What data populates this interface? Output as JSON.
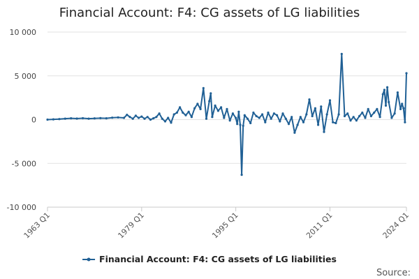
{
  "chart_data": {
    "type": "line",
    "title": "Financial Account: F4: CG assets of LG liabilities",
    "xlabel": "",
    "ylabel": "",
    "x_tick_labels": [
      "1963 Q1",
      "1979 Q1",
      "1995 Q1",
      "2011 Q1",
      "2024 Q1"
    ],
    "y_tick_labels": [
      "10 000",
      "5 000",
      "0",
      "-5 000",
      "-10 000"
    ],
    "y_ticks": [
      10000,
      5000,
      0,
      -5000,
      -10000
    ],
    "ylim": [
      -10000,
      10000
    ],
    "x_start": "1963 Q1",
    "x_end": "2024 Q1",
    "grid": "horizontal",
    "legend_position": "bottom",
    "series": [
      {
        "name": "Financial Account: F4: CG assets of LG liabilities",
        "color": "#206095",
        "points": [
          [
            "1963 Q1",
            0
          ],
          [
            "1964 Q1",
            30
          ],
          [
            "1965 Q1",
            60
          ],
          [
            "1966 Q1",
            110
          ],
          [
            "1967 Q1",
            150
          ],
          [
            "1968 Q1",
            120
          ],
          [
            "1969 Q1",
            160
          ],
          [
            "1970 Q1",
            110
          ],
          [
            "1971 Q1",
            140
          ],
          [
            "1972 Q1",
            170
          ],
          [
            "1973 Q1",
            150
          ],
          [
            "1974 Q1",
            220
          ],
          [
            "1975 Q1",
            250
          ],
          [
            "1976 Q1",
            200
          ],
          [
            "1976 Q3",
            550
          ],
          [
            "1977 Q1",
            300
          ],
          [
            "1977 Q3",
            100
          ],
          [
            "1978 Q1",
            450
          ],
          [
            "1978 Q3",
            200
          ],
          [
            "1979 Q1",
            350
          ],
          [
            "1979 Q3",
            100
          ],
          [
            "1980 Q1",
            300
          ],
          [
            "1980 Q3",
            0
          ],
          [
            "1981 Q1",
            150
          ],
          [
            "1981 Q3",
            300
          ],
          [
            "1982 Q1",
            700
          ],
          [
            "1982 Q3",
            100
          ],
          [
            "1983 Q1",
            -200
          ],
          [
            "1983 Q3",
            200
          ],
          [
            "1984 Q1",
            -350
          ],
          [
            "1984 Q3",
            600
          ],
          [
            "1985 Q1",
            800
          ],
          [
            "1985 Q3",
            1400
          ],
          [
            "1986 Q1",
            800
          ],
          [
            "1986 Q3",
            500
          ],
          [
            "1987 Q1",
            900
          ],
          [
            "1987 Q3",
            300
          ],
          [
            "1988 Q1",
            1300
          ],
          [
            "1988 Q3",
            1800
          ],
          [
            "1989 Q1",
            1200
          ],
          [
            "1989 Q3",
            3600
          ],
          [
            "1990 Q1",
            100
          ],
          [
            "1990 Q3",
            2100
          ],
          [
            "1990 Q4",
            3000
          ],
          [
            "1991 Q1",
            300
          ],
          [
            "1991 Q3",
            1600
          ],
          [
            "1992 Q1",
            1000
          ],
          [
            "1992 Q3",
            1400
          ],
          [
            "1993 Q1",
            200
          ],
          [
            "1993 Q3",
            1200
          ],
          [
            "1994 Q1",
            -100
          ],
          [
            "1994 Q3",
            700
          ],
          [
            "1995 Q1",
            200
          ],
          [
            "1995 Q2",
            -500
          ],
          [
            "1995 Q3",
            900
          ],
          [
            "1995 Q4",
            -600
          ],
          [
            "1996 Q1",
            -6300
          ],
          [
            "1996 Q2",
            -700
          ],
          [
            "1996 Q3",
            500
          ],
          [
            "1997 Q1",
            100
          ],
          [
            "1997 Q3",
            -400
          ],
          [
            "1998 Q1",
            800
          ],
          [
            "1998 Q3",
            400
          ],
          [
            "1999 Q1",
            200
          ],
          [
            "1999 Q3",
            600
          ],
          [
            "2000 Q1",
            -300
          ],
          [
            "2000 Q3",
            800
          ],
          [
            "2001 Q1",
            100
          ],
          [
            "2001 Q3",
            700
          ],
          [
            "2002 Q1",
            500
          ],
          [
            "2002 Q3",
            -200
          ],
          [
            "2003 Q1",
            700
          ],
          [
            "2003 Q3",
            100
          ],
          [
            "2004 Q1",
            -500
          ],
          [
            "2004 Q3",
            300
          ],
          [
            "2005 Q1",
            -1500
          ],
          [
            "2005 Q3",
            -600
          ],
          [
            "2006 Q1",
            300
          ],
          [
            "2006 Q3",
            -300
          ],
          [
            "2007 Q1",
            600
          ],
          [
            "2007 Q3",
            2300
          ],
          [
            "2008 Q1",
            400
          ],
          [
            "2008 Q3",
            1300
          ],
          [
            "2009 Q1",
            -600
          ],
          [
            "2009 Q3",
            1500
          ],
          [
            "2010 Q1",
            -1400
          ],
          [
            "2010 Q3",
            600
          ],
          [
            "2011 Q1",
            2200
          ],
          [
            "2011 Q3",
            -300
          ],
          [
            "2012 Q1",
            -400
          ],
          [
            "2012 Q3",
            600
          ],
          [
            "2013 Q1",
            7500
          ],
          [
            "2013 Q3",
            400
          ],
          [
            "2014 Q1",
            700
          ],
          [
            "2014 Q3",
            -100
          ],
          [
            "2015 Q1",
            300
          ],
          [
            "2015 Q3",
            -100
          ],
          [
            "2016 Q1",
            400
          ],
          [
            "2016 Q3",
            800
          ],
          [
            "2017 Q1",
            200
          ],
          [
            "2017 Q3",
            1200
          ],
          [
            "2018 Q1",
            400
          ],
          [
            "2018 Q3",
            800
          ],
          [
            "2019 Q1",
            1200
          ],
          [
            "2019 Q3",
            300
          ],
          [
            "2020 Q1",
            2900
          ],
          [
            "2020 Q2",
            3400
          ],
          [
            "2020 Q3",
            1600
          ],
          [
            "2020 Q4",
            3700
          ],
          [
            "2021 Q1",
            2000
          ],
          [
            "2021 Q3",
            200
          ],
          [
            "2022 Q1",
            700
          ],
          [
            "2022 Q3",
            3100
          ],
          [
            "2023 Q1",
            1200
          ],
          [
            "2023 Q2",
            1800
          ],
          [
            "2023 Q3",
            1300
          ],
          [
            "2023 Q4",
            -300
          ],
          [
            "2024 Q1",
            5300
          ]
        ]
      }
    ]
  },
  "footer": {
    "source_label": "Source:"
  }
}
